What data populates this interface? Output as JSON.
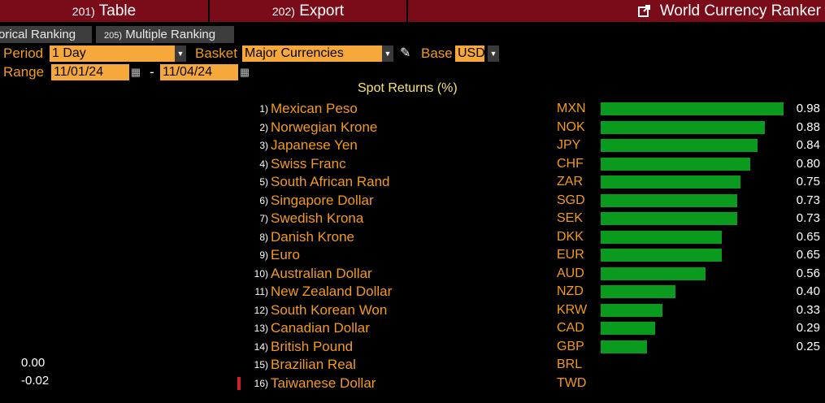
{
  "menubar": {
    "table_num": "201)",
    "table_label": "Table",
    "export_num": "202)",
    "export_label": "Export",
    "title": "World Currency Ranker"
  },
  "tabs": {
    "historical": "orical Ranking",
    "multiple_num": "205)",
    "multiple_label": "Multiple Ranking"
  },
  "controls": {
    "period_label": "Period",
    "period_value": "1 Day",
    "basket_label": "Basket",
    "basket_value": "Major Currencies",
    "base_label": "Base",
    "base_value": "USD",
    "range_label": "Range",
    "range_start": "11/01/24",
    "range_sep": "-",
    "range_end": "11/04/24"
  },
  "chart_data": {
    "type": "bar",
    "title": "Spot Returns (%)",
    "rows": [
      {
        "rank": "1)",
        "name": "Mexican Peso",
        "code": "MXN",
        "value": 0.98,
        "label": "0.98"
      },
      {
        "rank": "2)",
        "name": "Norwegian Krone",
        "code": "NOK",
        "value": 0.88,
        "label": "0.88"
      },
      {
        "rank": "3)",
        "name": "Japanese Yen",
        "code": "JPY",
        "value": 0.84,
        "label": "0.84"
      },
      {
        "rank": "4)",
        "name": "Swiss Franc",
        "code": "CHF",
        "value": 0.8,
        "label": "0.80"
      },
      {
        "rank": "5)",
        "name": "South African Rand",
        "code": "ZAR",
        "value": 0.75,
        "label": "0.75"
      },
      {
        "rank": "6)",
        "name": "Singapore Dollar",
        "code": "SGD",
        "value": 0.73,
        "label": "0.73"
      },
      {
        "rank": "7)",
        "name": "Swedish Krona",
        "code": "SEK",
        "value": 0.73,
        "label": "0.73"
      },
      {
        "rank": "8)",
        "name": "Danish Krone",
        "code": "DKK",
        "value": 0.65,
        "label": "0.65"
      },
      {
        "rank": "9)",
        "name": "Euro",
        "code": "EUR",
        "value": 0.65,
        "label": "0.65"
      },
      {
        "rank": "10)",
        "name": "Australian Dollar",
        "code": "AUD",
        "value": 0.56,
        "label": "0.56"
      },
      {
        "rank": "11)",
        "name": "New Zealand Dollar",
        "code": "NZD",
        "value": 0.4,
        "label": "0.40"
      },
      {
        "rank": "12)",
        "name": "South Korean Won",
        "code": "KRW",
        "value": 0.33,
        "label": "0.33"
      },
      {
        "rank": "13)",
        "name": "Canadian Dollar",
        "code": "CAD",
        "value": 0.29,
        "label": "0.29"
      },
      {
        "rank": "14)",
        "name": "British Pound",
        "code": "GBP",
        "value": 0.25,
        "label": "0.25"
      },
      {
        "rank": "15)",
        "name": "Brazilian Real",
        "code": "BRL",
        "value": 0.0,
        "label": ""
      },
      {
        "rank": "16)",
        "name": "Taiwanese Dollar",
        "code": "TWD",
        "value": -0.02,
        "label": ""
      }
    ],
    "axis_labels": [
      "0.00",
      "-0.02"
    ],
    "colors": {
      "bar": "#0a9a1e",
      "negative_marker": "#d01e35"
    }
  }
}
